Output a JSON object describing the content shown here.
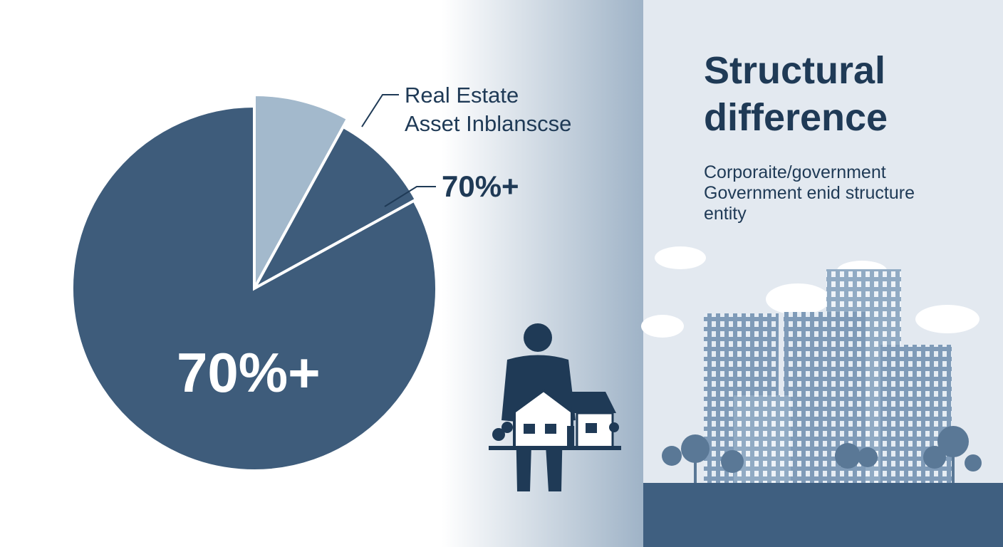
{
  "chart_data": {
    "type": "pie",
    "categories": [
      "Real Estate\nAsset Inblanscse",
      null,
      null
    ],
    "values": [
      8,
      9,
      83
    ],
    "colors": [
      "#a3b9cc",
      "#3e5c7b",
      "#3e5c7b"
    ],
    "annotations": [
      "70%+",
      "70%+"
    ]
  },
  "panel": {
    "title": "Structural\ndifference",
    "body": "Corporaite/government\nGovernment enid structure\nentity"
  }
}
